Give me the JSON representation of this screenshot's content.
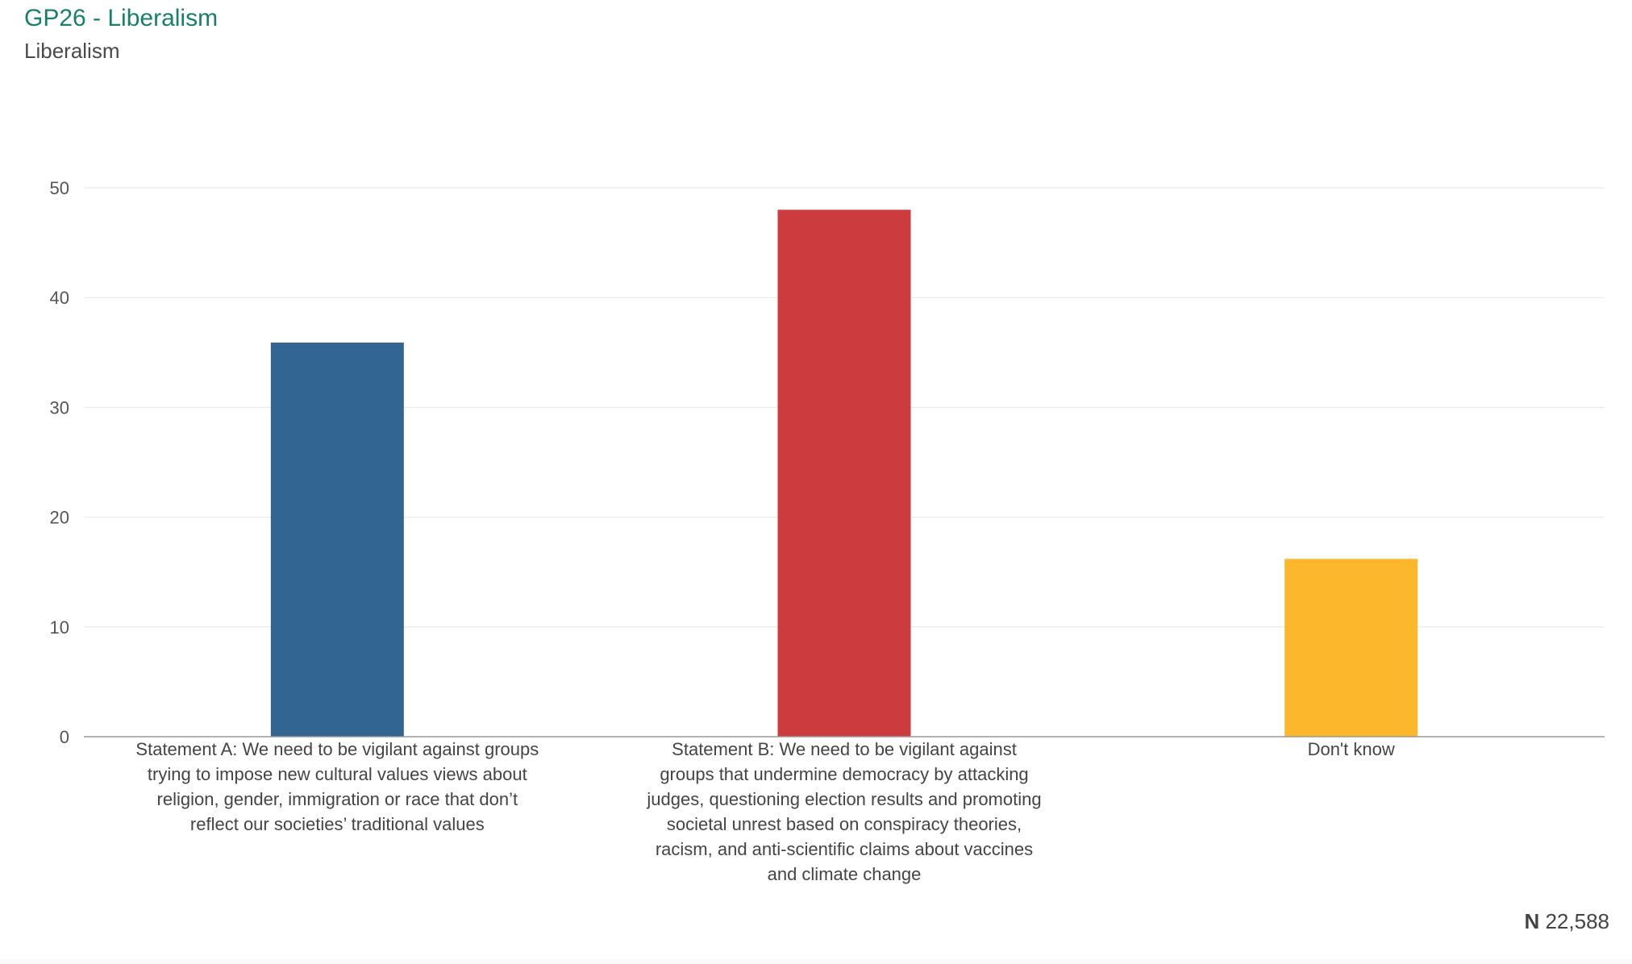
{
  "header": {
    "title": "GP26 - Liberalism",
    "subtitle": "Liberalism"
  },
  "footer": {
    "n_label": "N",
    "n_value": "22,588"
  },
  "chart_data": {
    "type": "bar",
    "title": "GP26 - Liberalism",
    "subtitle": "Liberalism",
    "categories": [
      "Statement A: We need to be vigilant against groups trying to impose new cultural values views about religion, gender, immigration or race that don’t reflect our societies’ traditional values",
      "Statement B: We need to be vigilant against groups that undermine democracy by attacking judges, questioning election results and promoting societal unrest based on conspiracy theories, racism, and anti-scientific claims about vaccines and climate change",
      "Don't know"
    ],
    "values": [
      35.9,
      48.0,
      16.2
    ],
    "colors": [
      "#326592",
      "#cc3c3f",
      "#fcb72d"
    ],
    "ylim": [
      0,
      50
    ],
    "yticks": [
      0,
      10,
      20,
      30,
      40,
      50
    ],
    "xlabel": "",
    "ylabel": "",
    "grid": true,
    "legend": "none"
  }
}
